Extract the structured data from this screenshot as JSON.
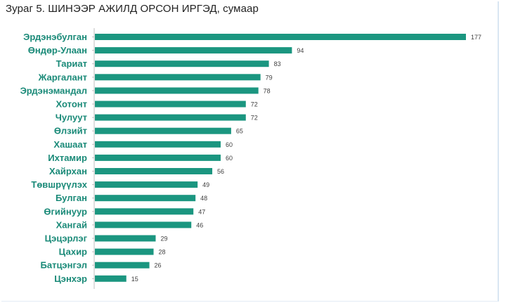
{
  "caption": "Зураг 5. ШИНЭЭР АЖИЛД ОРСОН ИРГЭД, сумаар",
  "colors": {
    "bar": "#1b9680",
    "label": "#1a8a78",
    "axis": "#bfbfbf"
  },
  "chart_data": {
    "type": "bar",
    "orientation": "horizontal",
    "title": "Зураг 5. ШИНЭЭР АЖИЛД ОРСОН ИРГЭД, сумаар",
    "categories": [
      "Эрдэнэбулган",
      "Өндөр-Улаан",
      "Тариат",
      "Жаргалант",
      "Эрдэнэмандал",
      "Хотонт",
      "Чулуут",
      "Өлзийт",
      "Хашаат",
      "Ихтамир",
      "Хайрхан",
      "Төвшрүүлэх",
      "Булган",
      "Өгийнуур",
      "Хангай",
      "Цэцэрлэг",
      "Цахир",
      "Батцэнгэл",
      "Цэнхэр"
    ],
    "values": [
      177,
      94,
      83,
      79,
      78,
      72,
      72,
      65,
      60,
      60,
      56,
      49,
      48,
      47,
      46,
      29,
      28,
      26,
      15
    ],
    "xlim": [
      0,
      177
    ],
    "data_labels": true,
    "grid": false,
    "legend": "none"
  }
}
